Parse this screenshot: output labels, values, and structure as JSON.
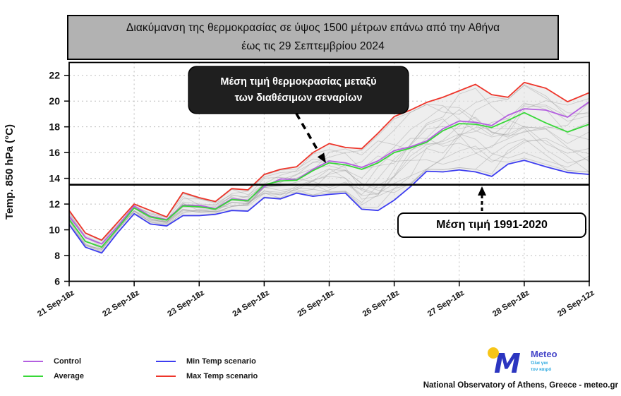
{
  "title": {
    "line1": "Διακύμανση της θερμοκρασίας σε ύψος 1500 μέτρων επάνω από την Αθήνα",
    "line2": "έως τις 29 Σεπτεμβρίου 2024"
  },
  "annotations": {
    "ensemble_mean": {
      "line1": "Μέση τιμή θερμοκρασίας μεταξύ",
      "line2": "των διαθέσιμων σεναρίων"
    },
    "climatology": {
      "label": "Μέση τιμή 1991-2020"
    }
  },
  "legend": [
    {
      "label": "Control",
      "color": "#b45fe0"
    },
    {
      "label": "Average",
      "color": "#37d837"
    },
    {
      "label": "Min Temp scenario",
      "color": "#3d3df0"
    },
    {
      "label": "Max Temp scenario",
      "color": "#ee352a"
    }
  ],
  "footer": {
    "brand": "Meteo",
    "brand_sub1": "Όλα για",
    "brand_sub2": "τον καιρό",
    "attribution": "National Observatory of Athens, Greece - meteo.gr"
  },
  "chart_data": {
    "type": "line",
    "title": "Διακύμανση της θερμοκρασίας σε ύψος 1500 μέτρων επάνω από την Αθήνα έως τις 29 Σεπτεμβρίου 2024",
    "xlabel": "",
    "ylabel": "Temp. 850 hPa (°C)",
    "ylim": [
      6,
      23
    ],
    "yticks": [
      6,
      8,
      10,
      12,
      14,
      16,
      18,
      20,
      22
    ],
    "grid": true,
    "legend_position": "bottom-left",
    "x_tick_labels": [
      "21 Sep-18z",
      "22 Sep-18z",
      "23 Sep-18z",
      "24 Sep-18z",
      "25 Sep-18z",
      "26 Sep-18z",
      "27 Sep-18z",
      "28 Sep-18z",
      "29 Sep-12z"
    ],
    "x_tick_indices": [
      0,
      4,
      8,
      12,
      16,
      20,
      24,
      28,
      31
    ],
    "x": [
      "21 Sep-18z",
      "22 Sep-00z",
      "22 Sep-06z",
      "22 Sep-12z",
      "22 Sep-18z",
      "23 Sep-00z",
      "23 Sep-06z",
      "23 Sep-12z",
      "23 Sep-18z",
      "24 Sep-00z",
      "24 Sep-06z",
      "24 Sep-12z",
      "24 Sep-18z",
      "25 Sep-00z",
      "25 Sep-06z",
      "25 Sep-12z",
      "25 Sep-18z",
      "26 Sep-00z",
      "26 Sep-06z",
      "26 Sep-12z",
      "26 Sep-18z",
      "27 Sep-00z",
      "27 Sep-06z",
      "27 Sep-12z",
      "27 Sep-18z",
      "28 Sep-00z",
      "28 Sep-06z",
      "28 Sep-12z",
      "28 Sep-18z",
      "29 Sep-00z",
      "29 Sep-06z",
      "29 Sep-12z"
    ],
    "baseline": {
      "value": 13.5,
      "label": "Μέση τιμή 1991-2020",
      "color": "#000000"
    },
    "series": [
      {
        "name": "Control",
        "color": "#b45fe0",
        "values": [
          11.05,
          9.4,
          8.9,
          10.3,
          11.85,
          11.05,
          10.8,
          11.9,
          11.9,
          11.65,
          12.4,
          12.3,
          13.35,
          13.95,
          13.9,
          14.7,
          15.35,
          15.2,
          14.85,
          15.35,
          16.15,
          16.45,
          16.9,
          17.85,
          18.45,
          18.35,
          18.1,
          18.9,
          19.4,
          19.3,
          18.75,
          19.95
        ]
      },
      {
        "name": "Average",
        "color": "#37d837",
        "values": [
          10.8,
          9.1,
          8.65,
          10.15,
          11.7,
          11.0,
          10.75,
          11.85,
          11.8,
          11.6,
          12.35,
          12.25,
          13.5,
          13.8,
          13.85,
          14.6,
          15.2,
          15.05,
          14.7,
          15.2,
          16.0,
          16.35,
          16.8,
          17.7,
          18.25,
          18.2,
          17.95,
          18.5,
          19.1,
          18.3,
          17.6,
          18.2
        ]
      },
      {
        "name": "Min Temp scenario",
        "color": "#3d3df0",
        "values": [
          10.4,
          8.65,
          8.2,
          9.8,
          11.25,
          10.45,
          10.3,
          11.1,
          11.1,
          11.2,
          11.5,
          11.45,
          12.5,
          12.4,
          12.85,
          12.6,
          12.75,
          12.85,
          11.6,
          11.5,
          12.3,
          13.35,
          14.55,
          14.5,
          14.65,
          14.5,
          14.15,
          15.1,
          15.4,
          14.9,
          14.45,
          14.3
        ]
      },
      {
        "name": "Max Temp scenario",
        "color": "#ee352a",
        "values": [
          11.5,
          9.75,
          9.2,
          10.6,
          12.0,
          11.5,
          11.0,
          12.9,
          12.5,
          12.2,
          13.2,
          13.1,
          14.3,
          14.7,
          14.9,
          16.0,
          16.7,
          16.4,
          16.3,
          17.5,
          18.8,
          19.3,
          19.9,
          20.3,
          20.8,
          21.3,
          20.5,
          20.3,
          21.45,
          21.0,
          19.95,
          20.65
        ]
      }
    ],
    "ensemble": {
      "description": "gray spaghetti of available scenario members between min and max envelope",
      "member_count": 17,
      "seed": 11,
      "member_color": "#9a9a9a",
      "band_color": "#e2e2e2"
    }
  }
}
